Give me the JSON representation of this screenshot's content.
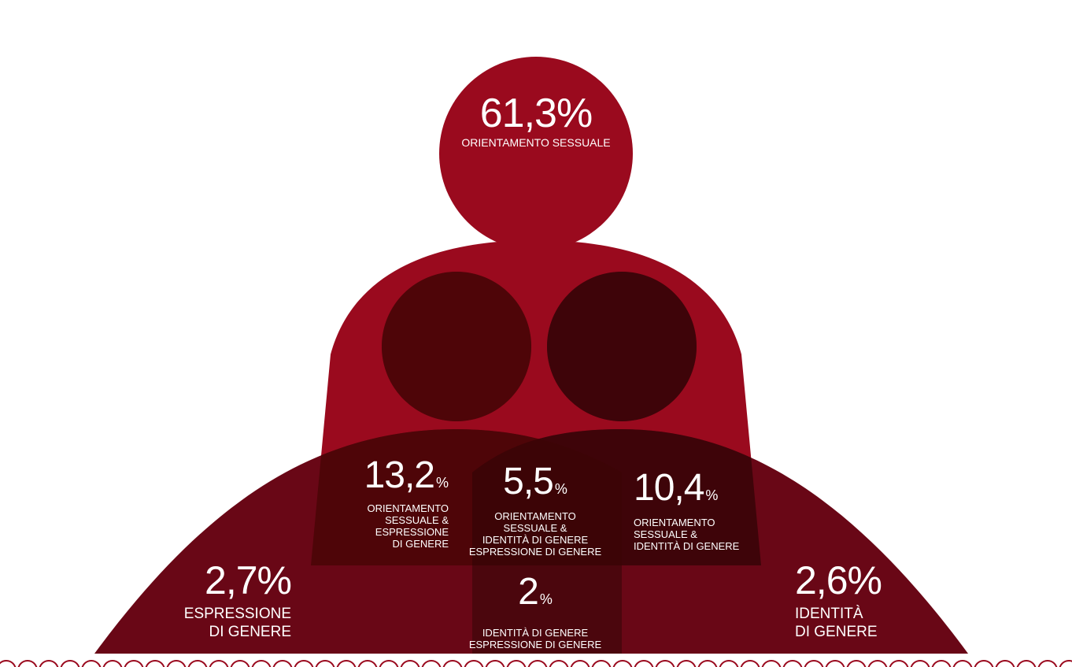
{
  "colors": {
    "primary": "#9a0a1e",
    "left_figure": "#690716",
    "right_figure": "#690716",
    "overlap_left": "#4e0508",
    "overlap_right": "#3e0409",
    "overlap_center": "#3c0406",
    "outline": "#9a0a1e"
  },
  "segments": [
    {
      "id": "orientamento",
      "value": "61,3",
      "unit": "%",
      "label": "ORIENTAMENTO SESSUALE"
    },
    {
      "id": "orient-espr",
      "value": "13,2",
      "unit": "%",
      "label": [
        "ORIENTAMENTO",
        "SESSUALE &",
        "ESPRESSIONE",
        "DI GENERE"
      ]
    },
    {
      "id": "tutti",
      "value": "5,5",
      "unit": "%",
      "label": [
        "ORIENTAMENTO",
        "SESSUALE &",
        "IDENTITÀ DI GENERE",
        "ESPRESSIONE DI GENERE"
      ]
    },
    {
      "id": "orient-ident",
      "value": "10,4",
      "unit": "%",
      "label": [
        "ORIENTAMENTO",
        "SESSUALE &",
        "IDENTITÀ DI GENERE"
      ]
    },
    {
      "id": "espressione",
      "value": "2,7",
      "unit": "%",
      "label": [
        "ESPRESSIONE",
        "DI GENERE"
      ]
    },
    {
      "id": "ident-espr",
      "value": "2",
      "unit": "%",
      "label": [
        "IDENTITÀ DI GENERE",
        "ESPRESSIONE DI GENERE"
      ]
    },
    {
      "id": "identita",
      "value": "2,6",
      "unit": "%",
      "label": [
        "IDENTITÀ",
        "DI GENERE"
      ]
    }
  ]
}
